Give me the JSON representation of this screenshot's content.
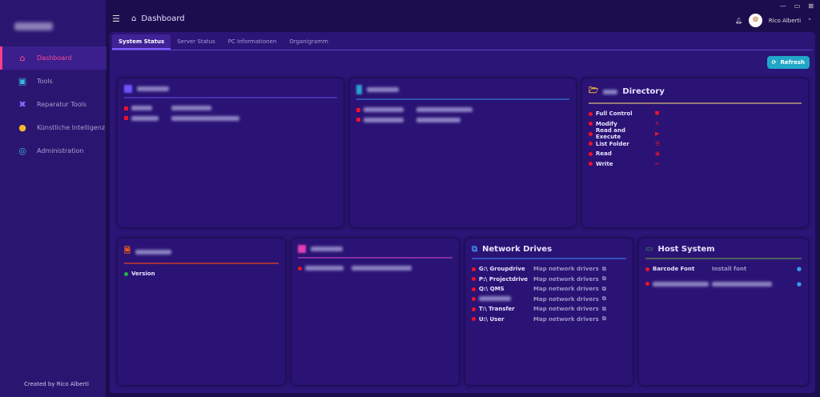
{
  "sidebar": {
    "items": [
      {
        "label": "Dashboard"
      },
      {
        "label": "Tools"
      },
      {
        "label": "Reparatur Tools"
      },
      {
        "label": "Künstliche Intelligenz"
      },
      {
        "label": "Administration"
      }
    ],
    "credit": "Created by Rico Alberti"
  },
  "header": {
    "title": "Dashboard",
    "user": "Rico Alberti"
  },
  "tabs": [
    "System Status",
    "Server Status",
    "PC Informationen",
    "Organigramm"
  ],
  "refresh_label": "Refresh",
  "directory": {
    "title": "Directory",
    "items": [
      "Full Control",
      "Modify",
      "Read and Execute",
      "List Folder",
      "Read",
      "Write"
    ]
  },
  "office": {
    "row": "Version"
  },
  "network": {
    "title": "Network Drives",
    "drives": [
      "G:\\ Groupdrive",
      "P:\\ Projectdrive",
      "Q:\\ QMS",
      "",
      "T:\\ Transfer",
      "U:\\ User"
    ],
    "action": "Map network drivers"
  },
  "host": {
    "title": "Host System",
    "row1": "Barcode Font",
    "row1_action": "Install font"
  },
  "colors": {
    "accent": "#ff3d8b",
    "refresh": "#21a6c7",
    "status_red": "#f0102a",
    "status_green": "#22b14c"
  }
}
